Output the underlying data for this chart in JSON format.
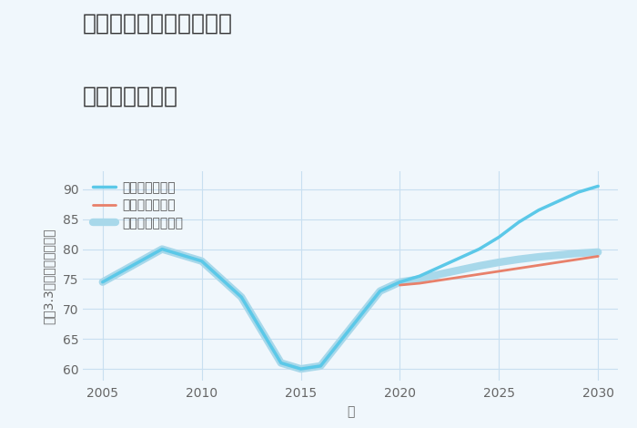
{
  "title_line1": "大阪府柏原市雁多尾畑の",
  "title_line2": "土地の価格推移",
  "xlabel": "年",
  "ylabel_parts": [
    "坪（3.3㎡）単価（万円）"
  ],
  "background_color": "#f0f7fc",
  "plot_bg_color": "#f0f7fc",
  "grid_color": "#c8dff0",
  "xlim": [
    2004,
    2031
  ],
  "ylim": [
    58,
    93
  ],
  "yticks": [
    60,
    65,
    70,
    75,
    80,
    85,
    90
  ],
  "xticks": [
    2005,
    2010,
    2015,
    2020,
    2025,
    2030
  ],
  "good_scenario": {
    "label": "グッドシナリオ",
    "color": "#5bc8e8",
    "linewidth": 2.5,
    "x": [
      2005,
      2008,
      2010,
      2012,
      2014,
      2015,
      2016,
      2019,
      2020,
      2021,
      2022,
      2023,
      2024,
      2025,
      2026,
      2027,
      2028,
      2029,
      2030
    ],
    "y": [
      74.5,
      80.0,
      78.0,
      72.0,
      61.0,
      60.0,
      60.5,
      73.0,
      74.5,
      75.5,
      77.0,
      78.5,
      80.0,
      82.0,
      84.5,
      86.5,
      88.0,
      89.5,
      90.5
    ]
  },
  "bad_scenario": {
    "label": "バッドシナリオ",
    "color": "#e8806a",
    "linewidth": 2.0,
    "x": [
      2020,
      2021,
      2022,
      2023,
      2024,
      2025,
      2026,
      2027,
      2028,
      2029,
      2030
    ],
    "y": [
      74.0,
      74.3,
      74.8,
      75.3,
      75.8,
      76.3,
      76.8,
      77.3,
      77.8,
      78.3,
      78.8
    ]
  },
  "normal_scenario": {
    "label": "ノーマルシナリオ",
    "color": "#a8d8ea",
    "linewidth": 6.0,
    "x": [
      2005,
      2008,
      2010,
      2012,
      2014,
      2015,
      2016,
      2019,
      2020,
      2021,
      2022,
      2023,
      2024,
      2025,
      2026,
      2027,
      2028,
      2029,
      2030
    ],
    "y": [
      74.5,
      80.0,
      78.0,
      72.0,
      61.0,
      60.0,
      60.5,
      73.0,
      74.5,
      75.0,
      75.8,
      76.5,
      77.2,
      77.8,
      78.3,
      78.7,
      79.0,
      79.3,
      79.5
    ]
  },
  "title_fontsize": 18,
  "axis_label_fontsize": 10,
  "tick_fontsize": 10,
  "legend_fontsize": 10
}
